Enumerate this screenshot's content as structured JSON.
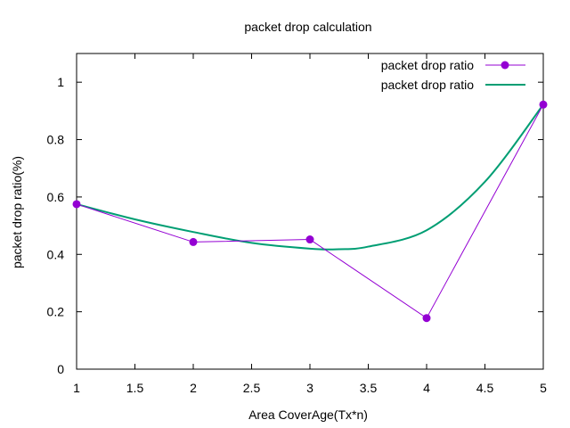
{
  "chart_data": {
    "type": "line",
    "title": "packet drop calculation",
    "xlabel": "Area CoverAge(Tx*n)",
    "ylabel": "packet drop ratio(%)",
    "xlim": [
      1,
      5
    ],
    "ylim": [
      0,
      1.1
    ],
    "x_ticks": [
      "1",
      "1.5",
      "2",
      "2.5",
      "3",
      "3.5",
      "4",
      "4.5",
      "5"
    ],
    "y_ticks": [
      "0",
      "0.2",
      "0.4",
      "0.6",
      "0.8",
      "1"
    ],
    "grid": false,
    "legend_position": "top-right",
    "series": [
      {
        "name": "packet drop ratio",
        "style": "linespoints",
        "color": "#9400d3",
        "x": [
          1,
          2,
          3,
          4,
          5
        ],
        "y": [
          0.575,
          0.443,
          0.452,
          0.178,
          0.922
        ]
      },
      {
        "name": "packet drop ratio",
        "style": "smooth-line",
        "color": "#009e73",
        "x": [
          1,
          1.5,
          2,
          2.5,
          3,
          3.25,
          3.5,
          4,
          4.5,
          5
        ],
        "y": [
          0.575,
          0.522,
          0.478,
          0.44,
          0.42,
          0.418,
          0.427,
          0.484,
          0.653,
          0.922
        ]
      }
    ]
  }
}
